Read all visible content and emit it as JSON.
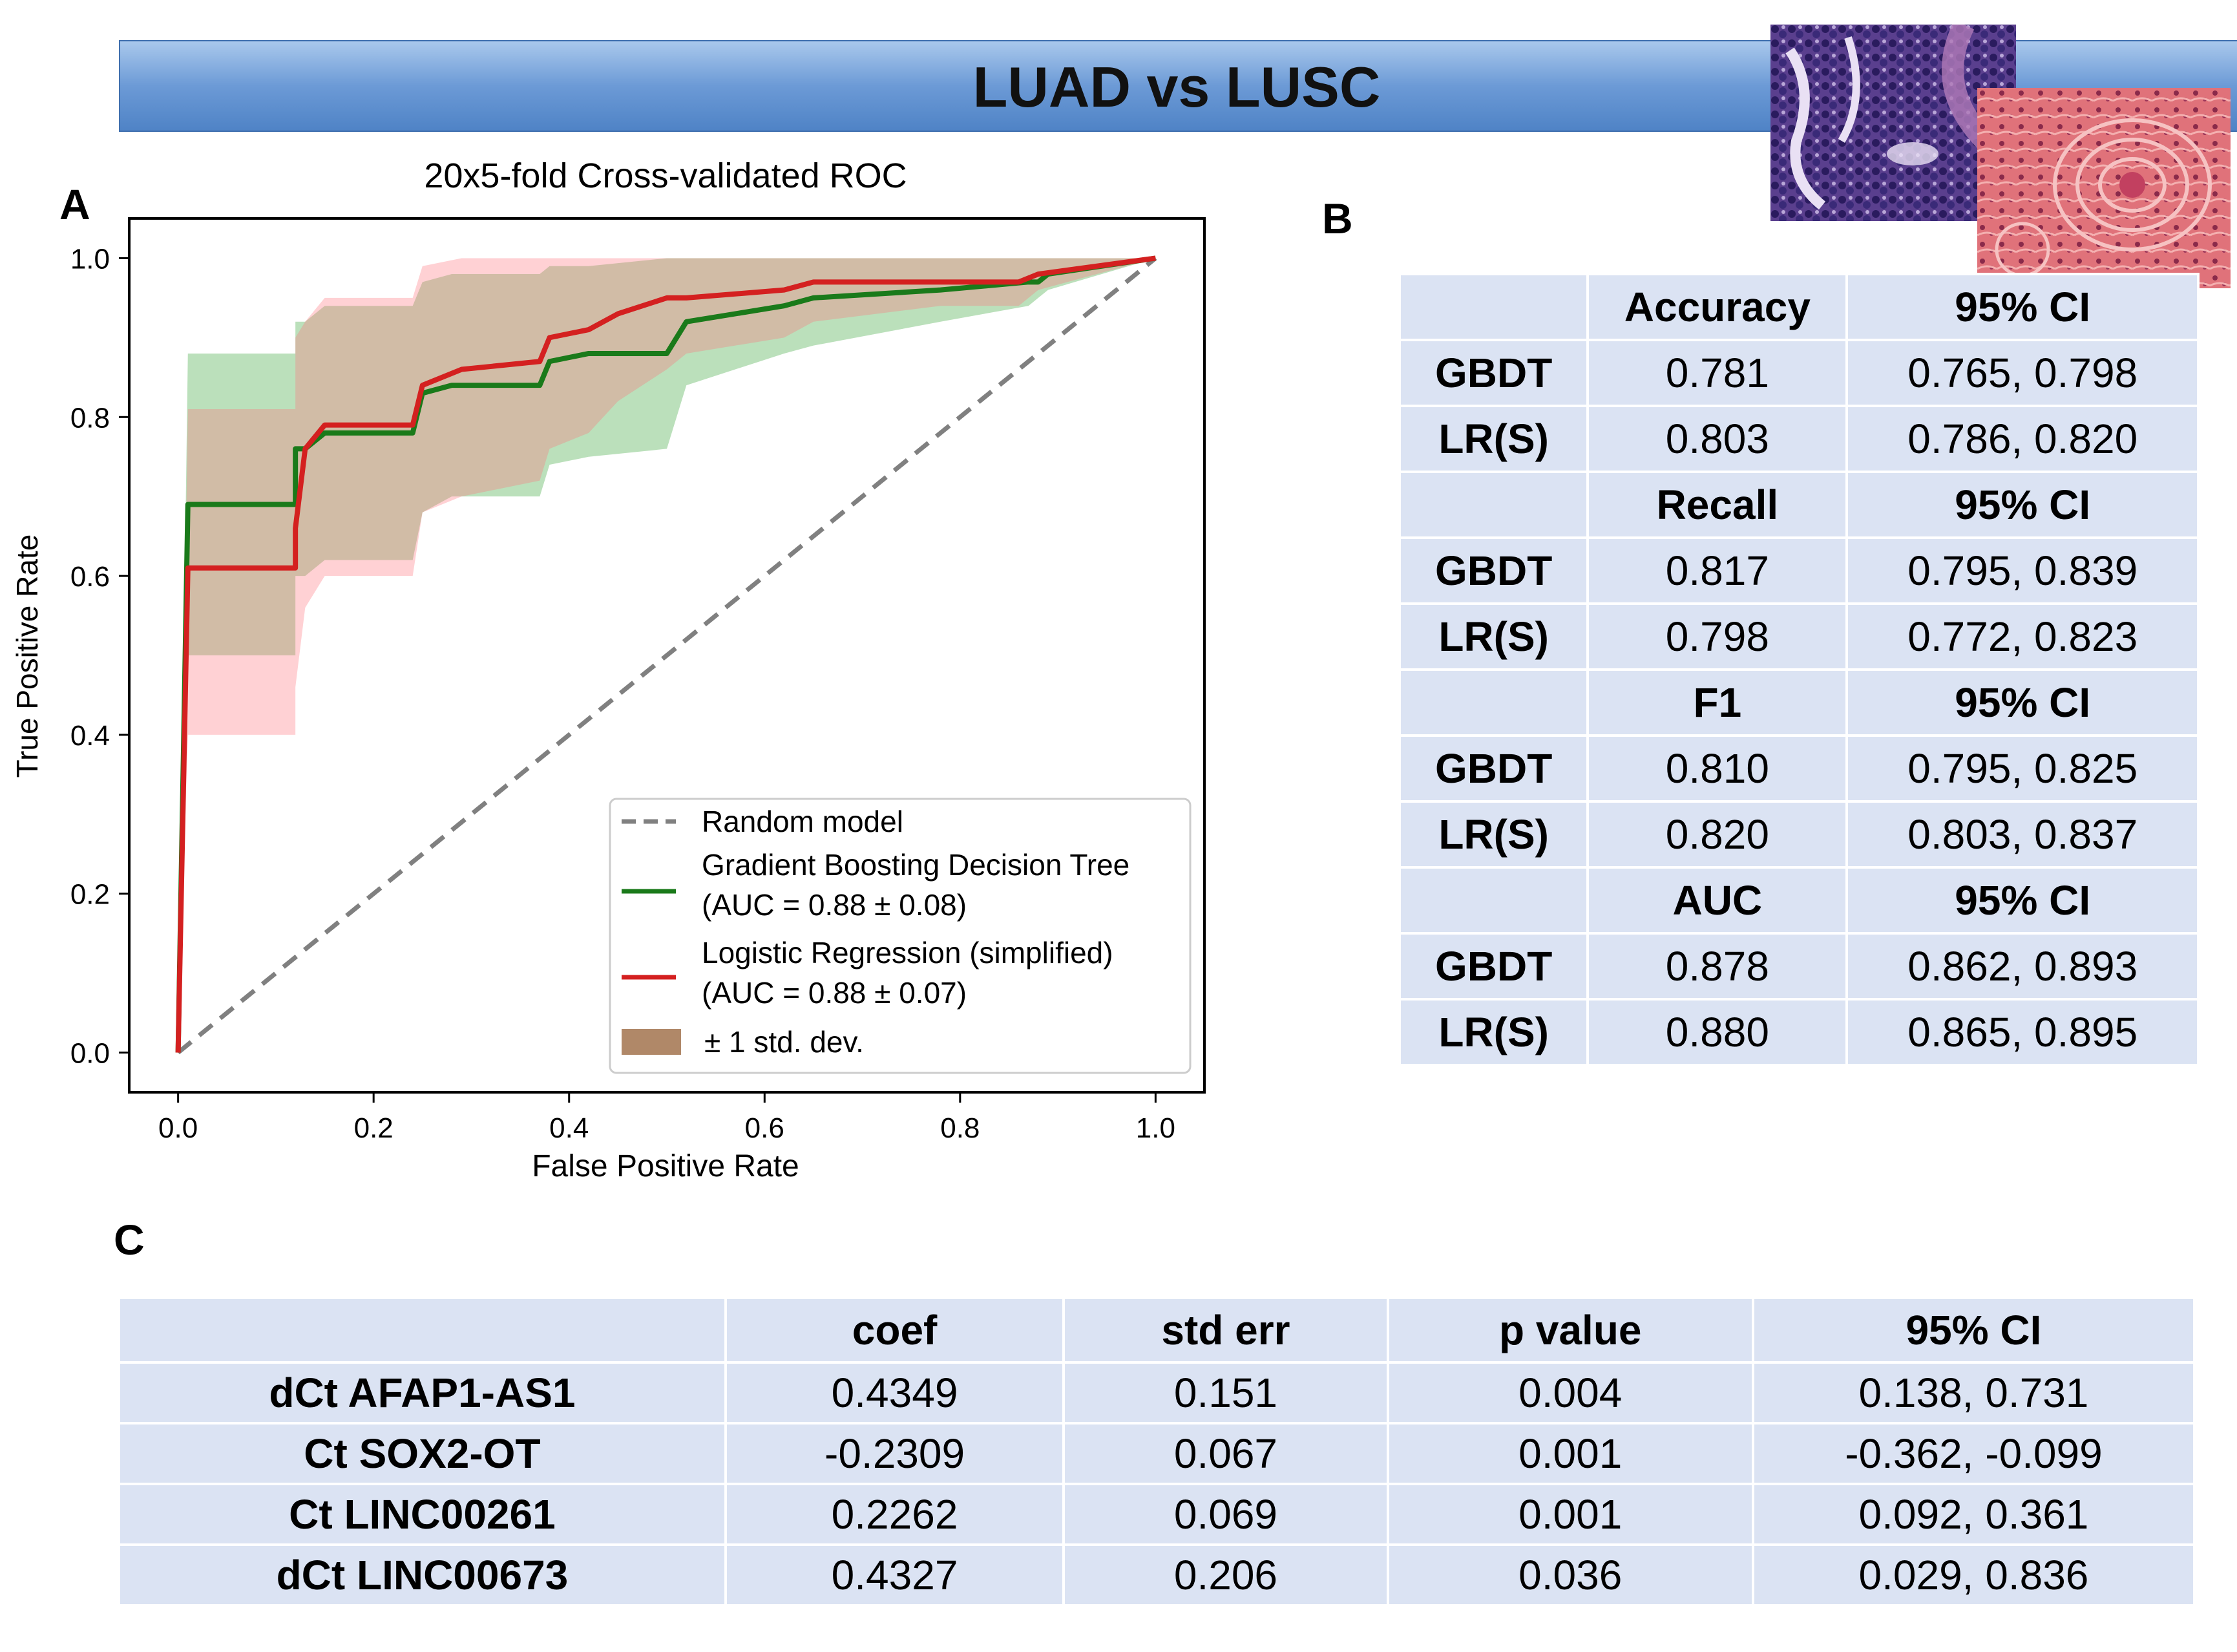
{
  "header": {
    "title": "LUAD vs LUSC"
  },
  "images": [
    {
      "name": "luad-histology-image",
      "alt": "LUAD histology"
    },
    {
      "name": "lusc-histology-image",
      "alt": "LUSC histology"
    }
  ],
  "panels": {
    "a": "A",
    "b": "B",
    "c": "C"
  },
  "chart_data": {
    "type": "line",
    "title": "20x5-fold Cross-validated ROC",
    "xlabel": "False Positive Rate",
    "ylabel": "True Positive Rate",
    "xlim": [
      -0.05,
      1.05
    ],
    "ylim": [
      -0.05,
      1.05
    ],
    "xticks": [
      "0.0",
      "0.2",
      "0.4",
      "0.6",
      "0.8",
      "1.0"
    ],
    "yticks": [
      "0.0",
      "0.2",
      "0.4",
      "0.6",
      "0.8",
      "1.0"
    ],
    "legend_position": "lower-right",
    "series": [
      {
        "name": "Random model",
        "style": "dashed",
        "color": "#808080",
        "x": [
          0,
          1
        ],
        "y": [
          0,
          1
        ]
      },
      {
        "name": "Gradient Boosting Decision Tree",
        "label2": "(AUC = 0.88 ± 0.08)",
        "color": "#1a7a1a",
        "x": [
          0,
          0.01,
          0.12,
          0.12,
          0.13,
          0.15,
          0.24,
          0.25,
          0.28,
          0.37,
          0.38,
          0.42,
          0.5,
          0.52,
          0.62,
          0.65,
          0.78,
          0.87,
          0.88,
          0.89,
          1.0
        ],
        "y": [
          0,
          0.69,
          0.69,
          0.76,
          0.76,
          0.78,
          0.78,
          0.83,
          0.84,
          0.84,
          0.87,
          0.88,
          0.88,
          0.92,
          0.94,
          0.95,
          0.96,
          0.97,
          0.97,
          0.98,
          1.0
        ],
        "band_upper": [
          0,
          0.88,
          0.88,
          0.92,
          0.92,
          0.94,
          0.94,
          0.97,
          0.98,
          0.98,
          0.99,
          0.99,
          1.0,
          1.0,
          1.0,
          1.0,
          1.0,
          1.0,
          1.0,
          1.0,
          1.0
        ],
        "band_lower": [
          0,
          0.5,
          0.5,
          0.6,
          0.6,
          0.62,
          0.62,
          0.68,
          0.7,
          0.7,
          0.74,
          0.75,
          0.76,
          0.84,
          0.88,
          0.89,
          0.92,
          0.94,
          0.95,
          0.96,
          1.0
        ]
      },
      {
        "name": "Logistic Regression (simplified)",
        "label2": "(AUC = 0.88 ± 0.07)",
        "color": "#d42020",
        "x": [
          0,
          0.01,
          0.12,
          0.12,
          0.13,
          0.15,
          0.24,
          0.25,
          0.29,
          0.37,
          0.38,
          0.42,
          0.45,
          0.5,
          0.52,
          0.62,
          0.65,
          0.78,
          0.86,
          0.88,
          1.0
        ],
        "y": [
          0,
          0.61,
          0.61,
          0.66,
          0.76,
          0.79,
          0.79,
          0.84,
          0.86,
          0.87,
          0.9,
          0.91,
          0.93,
          0.95,
          0.95,
          0.96,
          0.97,
          0.97,
          0.97,
          0.98,
          1.0
        ],
        "band_upper": [
          0,
          0.81,
          0.81,
          0.9,
          0.92,
          0.95,
          0.95,
          0.99,
          1.0,
          1.0,
          1.0,
          1.0,
          1.0,
          1.0,
          1.0,
          1.0,
          1.0,
          1.0,
          1.0,
          1.0,
          1.0
        ],
        "band_lower": [
          0,
          0.4,
          0.4,
          0.46,
          0.56,
          0.6,
          0.6,
          0.68,
          0.7,
          0.72,
          0.76,
          0.78,
          0.82,
          0.86,
          0.88,
          0.9,
          0.92,
          0.94,
          0.94,
          0.96,
          1.0
        ]
      }
    ],
    "band_label": "± 1 std. dev.",
    "band_color": "#b08868"
  },
  "metrics_table": {
    "sections": [
      {
        "metric": "Accuracy",
        "ci_header": "95% CI",
        "rows": [
          {
            "model": "GBDT",
            "value": "0.781",
            "ci": "0.765, 0.798"
          },
          {
            "model": "LR(S)",
            "value": "0.803",
            "ci": "0.786, 0.820"
          }
        ]
      },
      {
        "metric": "Recall",
        "ci_header": "95% CI",
        "rows": [
          {
            "model": "GBDT",
            "value": "0.817",
            "ci": "0.795, 0.839"
          },
          {
            "model": "LR(S)",
            "value": "0.798",
            "ci": "0.772, 0.823"
          }
        ]
      },
      {
        "metric": "F1",
        "ci_header": "95% CI",
        "rows": [
          {
            "model": "GBDT",
            "value": "0.810",
            "ci": "0.795, 0.825"
          },
          {
            "model": "LR(S)",
            "value": "0.820",
            "ci": "0.803, 0.837"
          }
        ]
      },
      {
        "metric": "AUC",
        "ci_header": "95% CI",
        "rows": [
          {
            "model": "GBDT",
            "value": "0.878",
            "ci": "0.862, 0.893"
          },
          {
            "model": "LR(S)",
            "value": "0.880",
            "ci": "0.865, 0.895"
          }
        ]
      }
    ]
  },
  "coef_table": {
    "headers": [
      "",
      "coef",
      "std err",
      "p value",
      "95% CI"
    ],
    "rows": [
      [
        "dCt AFAP1-AS1",
        "0.4349",
        "0.151",
        "0.004",
        "0.138, 0.731"
      ],
      [
        "Ct SOX2-OT",
        "-0.2309",
        "0.067",
        "0.001",
        "-0.362, -0.099"
      ],
      [
        "Ct LINC00261",
        "0.2262",
        "0.069",
        "0.001",
        "0.092, 0.361"
      ],
      [
        "dCt LINC00673",
        "0.4327",
        "0.206",
        "0.036",
        "0.029, 0.836"
      ]
    ]
  }
}
